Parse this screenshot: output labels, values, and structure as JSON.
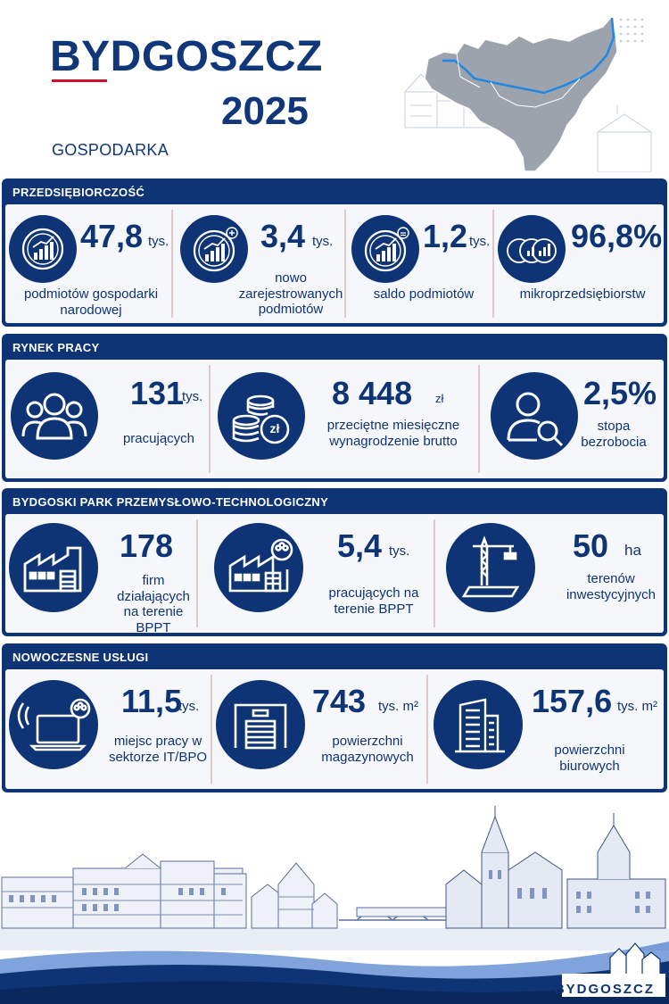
{
  "header": {
    "city": "BYDGOSZCZ",
    "year": "2025",
    "subtitle": "GOSPODARKA"
  },
  "sections": {
    "enterprise": {
      "title": "PRZEDSIĘBIORCZOŚĆ",
      "items": [
        {
          "icon": "coin-growth-icon",
          "value": "47,8",
          "unit": "tys.",
          "label": "podmiotów gospodarki narodowej"
        },
        {
          "icon": "coin-growth-plus-icon",
          "value": "3,4",
          "unit": "tys.",
          "label": "nowo zarejestrowanych podmiotów"
        },
        {
          "icon": "coin-balance-icon",
          "value": "1,2",
          "unit": "tys.",
          "label": "saldo podmiotów"
        },
        {
          "icon": "coins-stack-icon",
          "value": "96,8%",
          "unit": "",
          "label": "mikroprzedsiębiorstw"
        }
      ]
    },
    "labor": {
      "title": "RYNEK PRACY",
      "items": [
        {
          "icon": "people-group-icon",
          "value": "131",
          "unit": "tys.",
          "label": "pracujących"
        },
        {
          "icon": "zloty-coins-icon",
          "value": "8 448",
          "unit": "zł",
          "label": "przeciętne miesięczne wynagrodzenie brutto"
        },
        {
          "icon": "person-search-icon",
          "value": "2,5%",
          "unit": "",
          "label": "stopa bezrobocia"
        }
      ]
    },
    "park": {
      "title": "BYDGOSKI PARK PRZEMYSŁOWO-TECHNOLOGICZNY",
      "items": [
        {
          "icon": "factory-icon",
          "value": "178",
          "unit": "",
          "label": "firm działających na terenie BPPT"
        },
        {
          "icon": "factory-workers-icon",
          "value": "5,4",
          "unit": "tys.",
          "label": "pracujących na terenie BPPT"
        },
        {
          "icon": "crane-land-icon",
          "value": "50",
          "unit": "ha",
          "label": "terenów inwestycyjnych"
        }
      ]
    },
    "services": {
      "title": "NOWOCZESNE USŁUGI",
      "items": [
        {
          "icon": "laptop-wifi-icon",
          "value": "11,5",
          "unit": "tys.",
          "label": "miejsc pracy w sektorze IT/BPO"
        },
        {
          "icon": "warehouse-icon",
          "value": "743",
          "unit": "tys. m²",
          "label": "powierzchni magazynowych"
        },
        {
          "icon": "office-building-icon",
          "value": "157,6",
          "unit": "tys. m²",
          "label": "powierzchni biurowych"
        }
      ]
    }
  },
  "footer": {
    "brand": "BYDGOSZCZ"
  },
  "colors": {
    "primary": "#0e3476",
    "accent": "#d0112b",
    "background": "#ffffff"
  }
}
